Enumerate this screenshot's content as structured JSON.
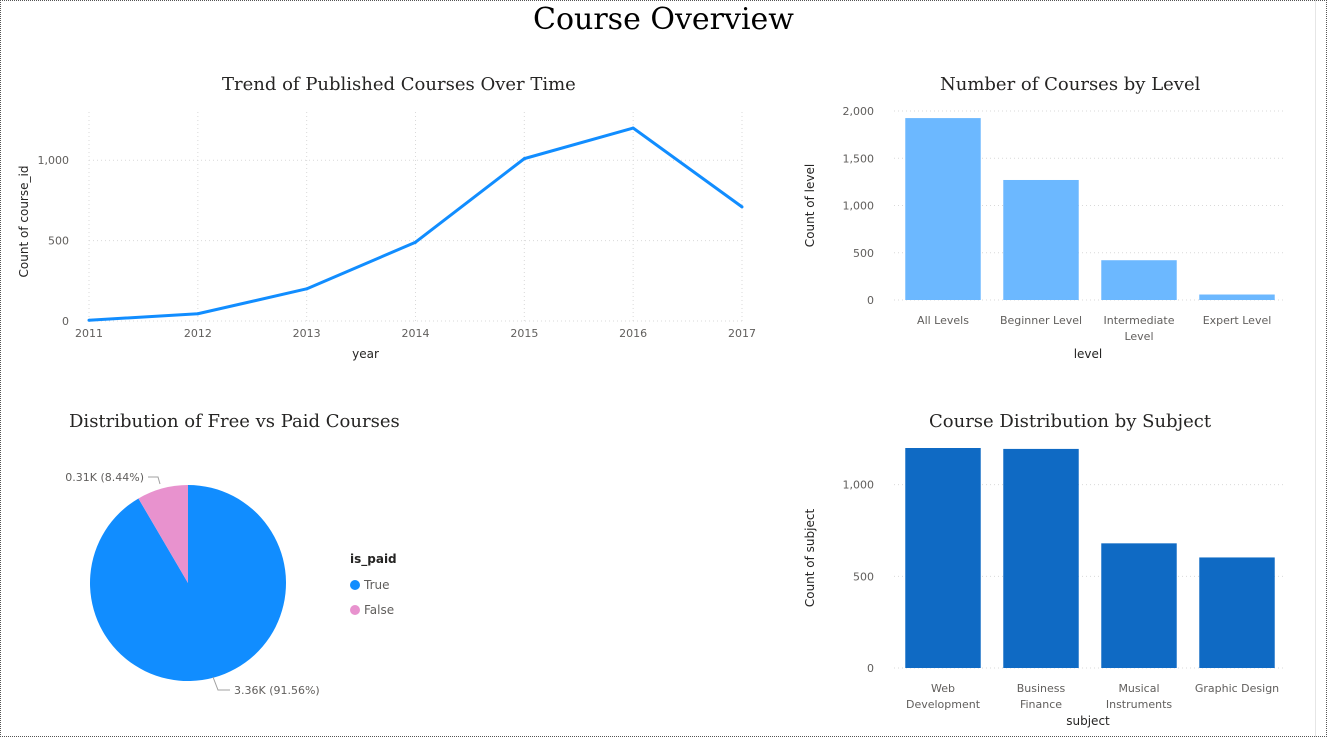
{
  "page": {
    "title": "Course Overview"
  },
  "chart_data": [
    {
      "type": "line",
      "title": "Trend of Published Courses Over Time",
      "xlabel": "year",
      "ylabel": "Count of course_id",
      "x": [
        2011,
        2012,
        2013,
        2014,
        2015,
        2016,
        2017
      ],
      "x_tick_labels": [
        "2011",
        "2012",
        "2013",
        "2014",
        "2015",
        "2016",
        "2017"
      ],
      "series": [
        {
          "values": [
            5,
            45,
            200,
            490,
            1010,
            1200,
            710
          ]
        }
      ],
      "ylim": [
        0,
        1300
      ],
      "y_ticks": [
        0,
        500,
        1000
      ],
      "y_tick_labels": [
        "0",
        "500",
        "1,000"
      ],
      "grid": true,
      "color": "#118DFF"
    },
    {
      "type": "bar",
      "title": "Number of Courses by Level",
      "xlabel": "level",
      "ylabel": "Count of level",
      "categories": [
        "All Levels",
        "Beginner Level",
        "Intermediate Level",
        "Expert Level"
      ],
      "category_label_lines": [
        [
          "All Levels"
        ],
        [
          "Beginner Level"
        ],
        [
          "Intermediate",
          "Level"
        ],
        [
          "Expert Level"
        ]
      ],
      "values": [
        1925,
        1270,
        421,
        58
      ],
      "ylim": [
        0,
        2000
      ],
      "y_ticks": [
        0,
        500,
        1000,
        1500,
        2000
      ],
      "y_tick_labels": [
        "0",
        "500",
        "1,000",
        "1,500",
        "2,000"
      ],
      "grid": true,
      "color": "#6CB8FF"
    },
    {
      "type": "pie",
      "title": "Distribution of Free vs Paid Courses",
      "legend_title": "is_paid",
      "legend_position": "right",
      "slices": [
        {
          "label": "True",
          "value": 3.36,
          "percent": 91.56,
          "data_label": "3.36K (91.56%)",
          "color": "#118DFF"
        },
        {
          "label": "False",
          "value": 0.31,
          "percent": 8.44,
          "data_label": "0.31K (8.44%)",
          "color": "#E892CE"
        }
      ]
    },
    {
      "type": "bar",
      "title": "Course Distribution by Subject",
      "xlabel": "subject",
      "ylabel": "Count of subject",
      "categories": [
        "Web Development",
        "Business Finance",
        "Musical Instruments",
        "Graphic Design"
      ],
      "category_label_lines": [
        [
          "Web",
          "Development"
        ],
        [
          "Business",
          "Finance"
        ],
        [
          "Musical",
          "Instruments"
        ],
        [
          "Graphic Design"
        ]
      ],
      "values": [
        1200,
        1195,
        680,
        603
      ],
      "ylim": [
        0,
        1200
      ],
      "y_ticks": [
        0,
        500,
        1000
      ],
      "y_tick_labels": [
        "0",
        "500",
        "1,000"
      ],
      "grid": true,
      "color": "#0F6AC4"
    }
  ]
}
